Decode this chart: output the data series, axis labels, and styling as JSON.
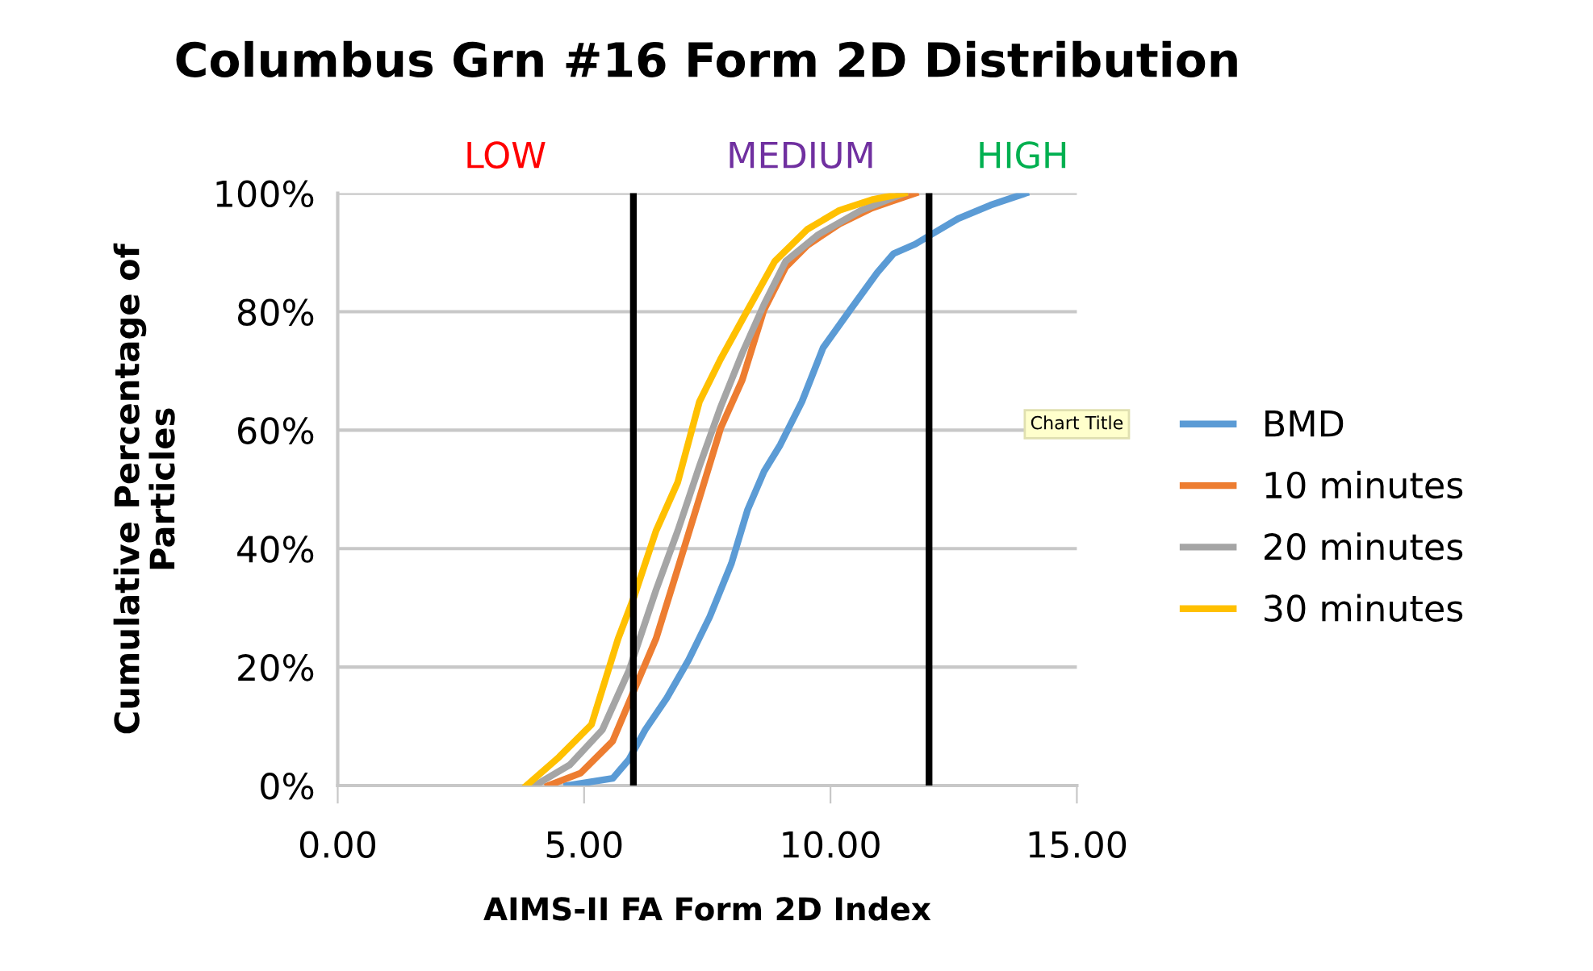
{
  "chart_data": {
    "type": "line",
    "title": "Columbus Grn #16 Form 2D Distribution",
    "xlabel": "AIMS-II FA Form 2D Index",
    "ylabel": "Cumulative Percentage of\nParticles",
    "xlim": [
      0,
      15
    ],
    "xticks": [
      {
        "value": 0,
        "label": "0.00"
      },
      {
        "value": 5,
        "label": "5.00"
      },
      {
        "value": 10,
        "label": "10.00"
      },
      {
        "value": 15,
        "label": "15.00"
      }
    ],
    "ylim": [
      0,
      100
    ],
    "yticks": [
      {
        "value": 0,
        "label": "0%"
      },
      {
        "value": 20,
        "label": "20%"
      },
      {
        "value": 40,
        "label": "40%"
      },
      {
        "value": 60,
        "label": "60%"
      },
      {
        "value": 80,
        "label": "80%"
      },
      {
        "value": 100,
        "label": "100%"
      }
    ],
    "grid": "y",
    "legend": "right",
    "marker": "none",
    "line_style": "solid",
    "ref_lines": [
      {
        "axis": "x",
        "value": 6,
        "color": "#000000"
      },
      {
        "axis": "x",
        "value": 12,
        "color": "#000000"
      }
    ],
    "annotations": [
      "LOW",
      "MEDIUM",
      "HIGH",
      "Chart Title"
    ],
    "series": [
      {
        "name": "BMD",
        "color": "#5b9bd5",
        "x": [
          4.65,
          5.58,
          5.91,
          6.24,
          6.68,
          7.12,
          7.55,
          7.99,
          8.32,
          8.65,
          8.98,
          9.42,
          9.85,
          10.4,
          10.95,
          11.28,
          11.72,
          12.04,
          12.59,
          13.25,
          13.96
        ],
        "values": [
          0,
          1.2,
          4.4,
          9.4,
          14.8,
          21.2,
          28.5,
          37.5,
          46.6,
          53,
          57.5,
          64.8,
          73.9,
          80.3,
          86.6,
          89.8,
          91.4,
          93,
          95.7,
          98,
          100
        ]
      },
      {
        "name": "10 minutes",
        "color": "#ed7d31",
        "x": [
          4.27,
          4.93,
          5.58,
          6.02,
          6.46,
          6.9,
          7.34,
          7.77,
          8.21,
          8.65,
          9.09,
          9.53,
          10.18,
          10.84,
          11.72
        ],
        "values": [
          0,
          2.1,
          7.5,
          16.2,
          24.8,
          36.6,
          48.5,
          60.3,
          68.5,
          80.3,
          87.5,
          91.2,
          94.8,
          97.5,
          100
        ]
      },
      {
        "name": "20 minutes",
        "color": "#a5a5a5",
        "x": [
          4.0,
          4.71,
          5.37,
          5.91,
          6.46,
          6.9,
          7.34,
          7.77,
          8.21,
          8.65,
          9.09,
          9.75,
          10.62,
          11.5
        ],
        "values": [
          0,
          3.5,
          9.4,
          19.4,
          33,
          43,
          53.9,
          63.9,
          73,
          81.2,
          88.5,
          93,
          97.1,
          100
        ]
      },
      {
        "name": "30 minutes",
        "color": "#ffc000",
        "x": [
          3.83,
          4.49,
          5.15,
          5.69,
          6.02,
          6.46,
          6.9,
          7.34,
          7.77,
          8.32,
          8.87,
          9.53,
          10.18,
          10.84,
          11.5
        ],
        "values": [
          0,
          4.8,
          10.3,
          24.8,
          32,
          43,
          51.2,
          64.8,
          72,
          80.3,
          88.5,
          93.9,
          97.1,
          98.9,
          100
        ]
      }
    ]
  }
}
